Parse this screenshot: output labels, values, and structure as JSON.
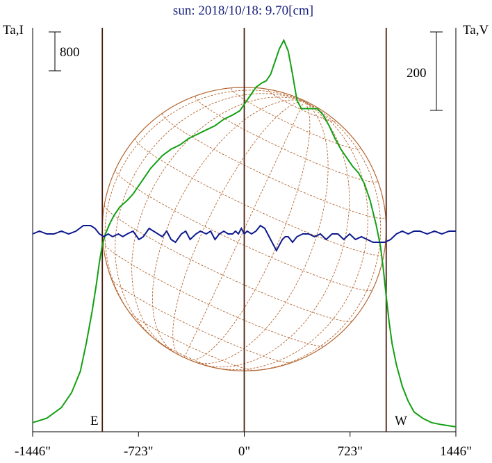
{
  "chart_data": {
    "type": "line",
    "title": "sun: 2018/10/18: 9.70[cm]",
    "left_axis_label": "Ta,I",
    "right_axis_label": "Ta,V",
    "scale_bar_left": "800",
    "scale_bar_right": "200",
    "x_tick_labels": [
      "-1446\"",
      "-723\"",
      "0\"",
      "723\"",
      "1446\""
    ],
    "x_ticks": [
      -1446,
      -723,
      0,
      723,
      1446
    ],
    "xlim": [
      -1446,
      1446
    ],
    "limb_labels": {
      "east": "E",
      "west": "W"
    },
    "limb_positions": [
      -970,
      0,
      970
    ],
    "solar_disk_radius": 970,
    "series": [
      {
        "color": "#12a012",
        "x": [
          -1446,
          -1350,
          -1250,
          -1180,
          -1120,
          -1080,
          -1040,
          -1010,
          -990,
          -970,
          -950,
          -920,
          -890,
          -850,
          -800,
          -760,
          -720,
          -680,
          -640,
          -600,
          -560,
          -500,
          -440,
          -380,
          -320,
          -260,
          -200,
          -140,
          -80,
          -30,
          0,
          40,
          80,
          120,
          150,
          180,
          210,
          240,
          270,
          300,
          330,
          360,
          390,
          420,
          460,
          500,
          540,
          580,
          620,
          660,
          700,
          740,
          780,
          820,
          860,
          900,
          930,
          950,
          970,
          990,
          1010,
          1040,
          1080,
          1120,
          1160,
          1220,
          1280,
          1350,
          1446
        ],
        "y": [
          0.03,
          0.05,
          0.1,
          0.17,
          0.27,
          0.4,
          0.55,
          0.68,
          0.78,
          0.86,
          0.91,
          0.96,
          1.0,
          1.04,
          1.07,
          1.1,
          1.14,
          1.18,
          1.22,
          1.25,
          1.28,
          1.31,
          1.33,
          1.36,
          1.38,
          1.4,
          1.42,
          1.45,
          1.47,
          1.49,
          1.52,
          1.56,
          1.6,
          1.62,
          1.63,
          1.66,
          1.72,
          1.78,
          1.82,
          1.77,
          1.66,
          1.54,
          1.5,
          1.5,
          1.5,
          1.5,
          1.47,
          1.42,
          1.36,
          1.31,
          1.27,
          1.23,
          1.2,
          1.15,
          1.07,
          0.96,
          0.86,
          0.75,
          0.62,
          0.5,
          0.4,
          0.3,
          0.2,
          0.13,
          0.08,
          0.05,
          0.03,
          0.02,
          0.01
        ],
        "ylim": [
          0,
          1.9
        ]
      },
      {
        "color": "#0d1a8c",
        "x": [
          -1446,
          -1400,
          -1350,
          -1300,
          -1250,
          -1200,
          -1150,
          -1100,
          -1050,
          -1020,
          -990,
          -960,
          -930,
          -900,
          -860,
          -830,
          -800,
          -760,
          -720,
          -690,
          -650,
          -620,
          -590,
          -560,
          -530,
          -500,
          -470,
          -430,
          -400,
          -370,
          -330,
          -300,
          -260,
          -230,
          -200,
          -170,
          -140,
          -110,
          -80,
          -60,
          -40,
          -20,
          0,
          20,
          50,
          80,
          110,
          140,
          170,
          200,
          220,
          240,
          260,
          280,
          300,
          330,
          360,
          400,
          440,
          480,
          520,
          560,
          600,
          640,
          680,
          720,
          760,
          800,
          840,
          880,
          920,
          960,
          1000,
          1040,
          1080,
          1120,
          1160,
          1200,
          1250,
          1300,
          1350,
          1400,
          1446
        ],
        "y": [
          0.0,
          0.01,
          0.0,
          0.0,
          0.01,
          0.0,
          0.01,
          0.03,
          0.03,
          0.02,
          0.0,
          -0.01,
          0.0,
          -0.01,
          0.0,
          -0.01,
          0.0,
          0.01,
          -0.02,
          -0.01,
          0.02,
          0.01,
          0.0,
          -0.01,
          0.01,
          -0.02,
          -0.03,
          0.0,
          0.01,
          -0.02,
          0.0,
          0.01,
          0.0,
          0.01,
          -0.02,
          0.0,
          0.01,
          0.0,
          0.0,
          0.01,
          0.0,
          0.02,
          0.0,
          0.01,
          0.0,
          0.01,
          0.03,
          0.02,
          -0.01,
          -0.04,
          -0.06,
          -0.04,
          -0.02,
          -0.01,
          -0.01,
          -0.03,
          -0.01,
          0.0,
          0.0,
          -0.01,
          0.0,
          -0.02,
          0.0,
          0.0,
          -0.02,
          0.0,
          -0.02,
          -0.01,
          -0.02,
          -0.03,
          -0.03,
          -0.03,
          -0.02,
          0.0,
          0.01,
          0.0,
          0.01,
          0.01,
          0.0,
          0.01,
          0.0,
          0.01,
          0.01
        ],
        "ylim": [
          -1,
          1
        ]
      }
    ],
    "colors": {
      "title": "#1a237e",
      "disk": "#b5652f",
      "limb_line": "#4a2010",
      "frame": "#000000"
    }
  }
}
